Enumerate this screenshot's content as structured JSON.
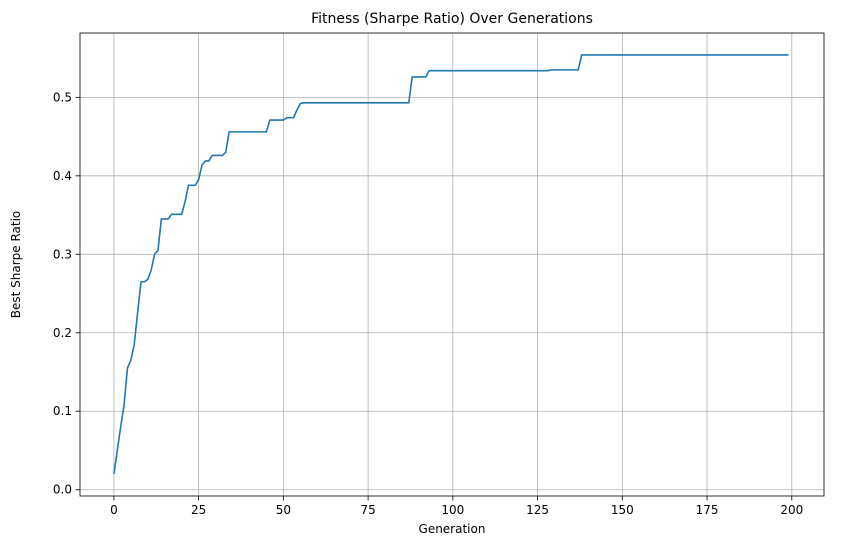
{
  "chart_data": {
    "type": "line",
    "title": "Fitness (Sharpe Ratio) Over Generations",
    "xlabel": "Generation",
    "ylabel": "Best Sharpe Ratio",
    "xlim": [
      -10,
      209.5
    ],
    "ylim": [
      -0.008,
      0.582
    ],
    "x_ticks": [
      0,
      25,
      50,
      75,
      100,
      125,
      150,
      175,
      200
    ],
    "y_ticks": [
      0.0,
      0.1,
      0.2,
      0.3,
      0.4,
      0.5
    ],
    "y_tick_labels": [
      "0.0",
      "0.1",
      "0.2",
      "0.3",
      "0.4",
      "0.5"
    ],
    "grid": true,
    "line_color": "#1f77b4",
    "series": [
      {
        "x": [
          0,
          1,
          2,
          3,
          4,
          5,
          6,
          7,
          8,
          9,
          10,
          11,
          12,
          13,
          14,
          15,
          16,
          17,
          18,
          19,
          20,
          21,
          22,
          23,
          24,
          25,
          26,
          27,
          28,
          29,
          30,
          31,
          32,
          33,
          34,
          45,
          46,
          49,
          50,
          51,
          53,
          54,
          55,
          56,
          87,
          88,
          91,
          92,
          93,
          128,
          129,
          137,
          138,
          199
        ],
        "y": [
          0.02,
          0.05,
          0.08,
          0.108,
          0.155,
          0.165,
          0.185,
          0.226,
          0.265,
          0.265,
          0.268,
          0.28,
          0.3,
          0.305,
          0.345,
          0.345,
          0.345,
          0.351,
          0.351,
          0.351,
          0.351,
          0.367,
          0.388,
          0.388,
          0.388,
          0.395,
          0.414,
          0.419,
          0.419,
          0.426,
          0.426,
          0.426,
          0.426,
          0.43,
          0.456,
          0.456,
          0.471,
          0.471,
          0.471,
          0.474,
          0.474,
          0.484,
          0.492,
          0.493,
          0.493,
          0.526,
          0.526,
          0.526,
          0.534,
          0.534,
          0.535,
          0.535,
          0.554,
          0.554
        ]
      }
    ]
  }
}
